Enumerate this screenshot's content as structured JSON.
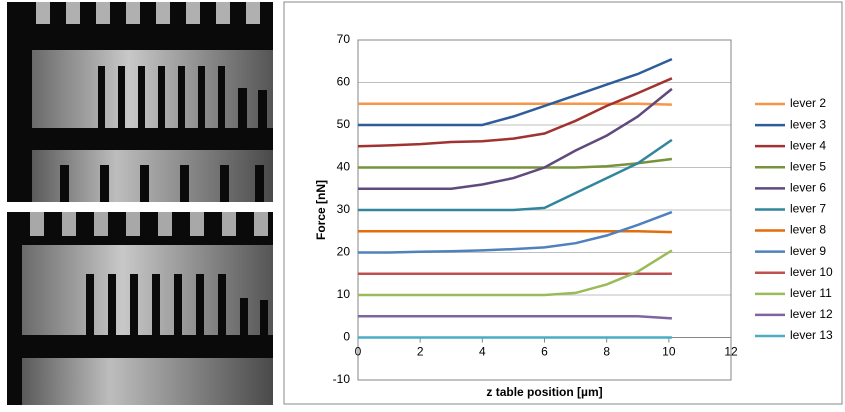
{
  "chart_data": {
    "type": "line",
    "ylabel": "Force [nN]",
    "xlabel": "z table position [µm]",
    "x": [
      0,
      1,
      2,
      3,
      4,
      5,
      6,
      7,
      8,
      9,
      10.1
    ],
    "xlim": [
      0,
      12
    ],
    "xticks": [
      0,
      2,
      4,
      6,
      8,
      10,
      12
    ],
    "ylim": [
      -10,
      70
    ],
    "yticks": [
      -10,
      0,
      10,
      20,
      30,
      40,
      50,
      60,
      70
    ],
    "grid": true,
    "legend": "right",
    "series": [
      {
        "name": "lever 2",
        "color": "#f79646",
        "values": [
          55,
          55,
          55,
          55,
          55,
          55,
          55,
          55,
          55,
          55,
          54.8
        ]
      },
      {
        "name": "lever 3",
        "color": "#2e5d9a",
        "values": [
          50,
          50,
          50,
          50,
          50,
          52,
          54.5,
          57,
          59.5,
          62,
          65.5
        ]
      },
      {
        "name": "lever 4",
        "color": "#a0332f",
        "values": [
          45,
          45.2,
          45.5,
          46,
          46.2,
          46.8,
          48,
          51,
          54.5,
          57.5,
          61
        ]
      },
      {
        "name": "lever 5",
        "color": "#77933c",
        "values": [
          40,
          40,
          40,
          40,
          40,
          40,
          40,
          40,
          40.3,
          41,
          42
        ]
      },
      {
        "name": "lever 6",
        "color": "#604a7b",
        "values": [
          35,
          35,
          35,
          35,
          36,
          37.5,
          40,
          44,
          47.5,
          52,
          58.5
        ]
      },
      {
        "name": "lever 7",
        "color": "#31859c",
        "values": [
          30,
          30,
          30,
          30,
          30,
          30,
          30.5,
          34,
          37.5,
          41,
          46.5
        ]
      },
      {
        "name": "lever 8",
        "color": "#e46c0a",
        "values": [
          25,
          25,
          25,
          25,
          25,
          25,
          25,
          25,
          25,
          25,
          24.8
        ]
      },
      {
        "name": "lever 9",
        "color": "#4f81bd",
        "values": [
          20,
          20,
          20.2,
          20.3,
          20.5,
          20.8,
          21.2,
          22.2,
          24,
          26.5,
          29.5
        ]
      },
      {
        "name": "lever 10",
        "color": "#c0504d",
        "values": [
          15,
          15,
          15,
          15,
          15,
          15,
          15,
          15,
          15,
          15,
          15
        ]
      },
      {
        "name": "lever 11",
        "color": "#9bbb59",
        "values": [
          10,
          10,
          10,
          10,
          10,
          10,
          10,
          10.5,
          12.5,
          15.5,
          20.5
        ]
      },
      {
        "name": "lever 12",
        "color": "#8064a2",
        "values": [
          5,
          5,
          5,
          5,
          5,
          5,
          5,
          5,
          5,
          5,
          4.5
        ]
      },
      {
        "name": "lever 13",
        "color": "#4bacc6",
        "values": [
          0,
          0,
          0,
          0,
          0,
          0,
          0,
          0,
          0,
          0,
          0
        ]
      }
    ]
  }
}
